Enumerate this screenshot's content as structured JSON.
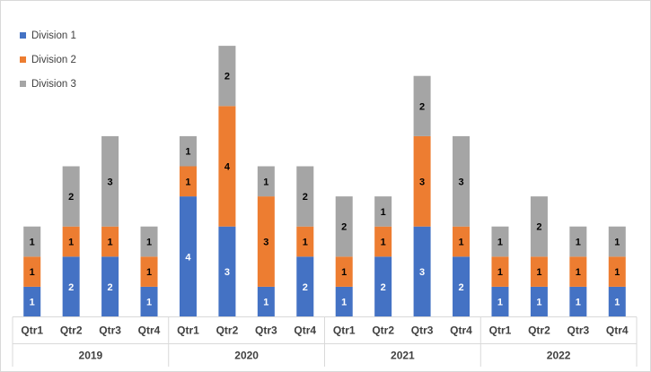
{
  "chart_data": {
    "type": "bar",
    "stacked": true,
    "groups": [
      {
        "label": "2019",
        "categories": [
          "Qtr1",
          "Qtr2",
          "Qtr3",
          "Qtr4"
        ]
      },
      {
        "label": "2020",
        "categories": [
          "Qtr1",
          "Qtr2",
          "Qtr3",
          "Qtr4"
        ]
      },
      {
        "label": "2021",
        "categories": [
          "Qtr1",
          "Qtr2",
          "Qtr3",
          "Qtr4"
        ]
      },
      {
        "label": "2022",
        "categories": [
          "Qtr1",
          "Qtr2",
          "Qtr3",
          "Qtr4"
        ]
      }
    ],
    "series": [
      {
        "name": "Division 1",
        "color": "#4472C4",
        "values": [
          1,
          2,
          2,
          1,
          4,
          3,
          1,
          2,
          1,
          2,
          3,
          2,
          1,
          1,
          1,
          1
        ]
      },
      {
        "name": "Division 2",
        "color": "#ED7D31",
        "values": [
          1,
          1,
          1,
          1,
          1,
          4,
          3,
          1,
          1,
          1,
          3,
          1,
          1,
          1,
          1,
          1
        ]
      },
      {
        "name": "Division 3",
        "color": "#A5A5A5",
        "values": [
          1,
          2,
          3,
          1,
          1,
          2,
          1,
          2,
          2,
          1,
          2,
          3,
          1,
          2,
          1,
          1
        ]
      }
    ],
    "ylim": [
      0,
      9
    ],
    "title": "",
    "xlabel": "",
    "ylabel": "",
    "grid": false,
    "legend_position": "top-left"
  }
}
